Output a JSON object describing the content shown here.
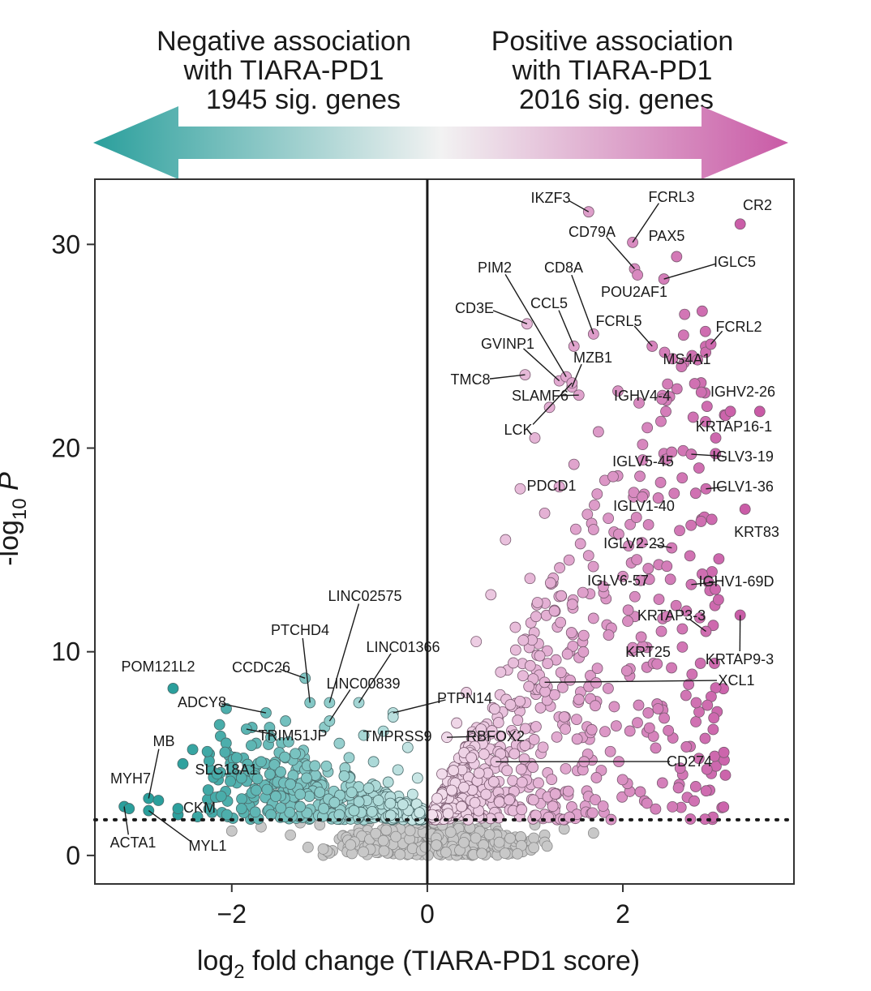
{
  "header": {
    "negative": {
      "line1": "Negative association",
      "line2": "with TIARA-PD1",
      "line3": "1945 sig. genes"
    },
    "positive": {
      "line1": "Positive association",
      "line2": "with TIARA-PD1",
      "line3": "2016 sig. genes"
    },
    "colors": {
      "negative": "#2a9f9c",
      "neutral": "#f2f2f2",
      "positive": "#c95aa6"
    }
  },
  "chart_data": {
    "type": "scatter",
    "title": "",
    "xlabel": "log2 fold change (TIARA-PD1 score)",
    "xlabel_parts": {
      "pre": "log",
      "sub": "2",
      "post": " fold change (TIARA-PD1 score)"
    },
    "ylabel": "-log10 P",
    "ylabel_parts": {
      "pre": "-log",
      "sub": "10",
      "post": " P"
    },
    "xlim": [
      -3.4,
      3.75
    ],
    "ylim": [
      -1.4,
      33.2
    ],
    "xticks": [
      {
        "value": -2,
        "label": "−2"
      },
      {
        "value": 0,
        "label": "0"
      },
      {
        "value": 2,
        "label": "2"
      }
    ],
    "yticks": [
      {
        "value": 0,
        "label": "0"
      },
      {
        "value": 10,
        "label": "10"
      },
      {
        "value": 20,
        "label": "20"
      },
      {
        "value": 30,
        "label": "30"
      }
    ],
    "significance_threshold": 1.75,
    "grid": false,
    "colors": {
      "negative_strong": "#2a9f9c",
      "negative_light": "#cfe9e8",
      "positive_light": "#f3e2ee",
      "positive_strong": "#c95aa6",
      "nonsig": "#c8c8c8"
    },
    "labeled_genes": [
      {
        "gene": "IKZF3",
        "x": 1.65,
        "y": 31.6
      },
      {
        "gene": "FCRL3",
        "x": 2.1,
        "y": 30.1
      },
      {
        "gene": "CR2",
        "x": 3.2,
        "y": 31.0
      },
      {
        "gene": "CD79A",
        "x": 2.12,
        "y": 28.8
      },
      {
        "gene": "PAX5",
        "x": 2.55,
        "y": 29.4
      },
      {
        "gene": "IGLC5",
        "x": 2.42,
        "y": 28.3
      },
      {
        "gene": "POU2AF1",
        "x": 2.15,
        "y": 28.5
      },
      {
        "gene": "CD8A",
        "x": 1.7,
        "y": 25.6
      },
      {
        "gene": "PIM2",
        "x": 1.42,
        "y": 23.5
      },
      {
        "gene": "CD3E",
        "x": 1.02,
        "y": 26.1
      },
      {
        "gene": "CCL5",
        "x": 1.5,
        "y": 25.0
      },
      {
        "gene": "FCRL5",
        "x": 2.3,
        "y": 25.0
      },
      {
        "gene": "FCRL2",
        "x": 2.9,
        "y": 25.1
      },
      {
        "gene": "GVINP1",
        "x": 1.35,
        "y": 23.3
      },
      {
        "gene": "MZB1",
        "x": 1.48,
        "y": 23.0
      },
      {
        "gene": "MS4A1",
        "x": 2.6,
        "y": 24.0
      },
      {
        "gene": "TMC8",
        "x": 1.0,
        "y": 23.6
      },
      {
        "gene": "SLAMF6",
        "x": 1.55,
        "y": 22.6
      },
      {
        "gene": "IGHV4-4",
        "x": 2.4,
        "y": 22.4
      },
      {
        "gene": "IGHV2-26",
        "x": 3.05,
        "y": 21.6
      },
      {
        "gene": "LCK",
        "x": 1.48,
        "y": 23.2
      },
      {
        "gene": "KRTAP16-1",
        "x": 3.1,
        "y": 21.8
      },
      {
        "gene": "IGLV5-45",
        "x": 2.5,
        "y": 19.8
      },
      {
        "gene": "IGLV3-19",
        "x": 2.7,
        "y": 19.7
      },
      {
        "gene": "PDCD1",
        "x": 1.35,
        "y": 18.1
      },
      {
        "gene": "IGLV1-36",
        "x": 2.85,
        "y": 18.0
      },
      {
        "gene": "IGLV1-40",
        "x": 2.2,
        "y": 17.6
      },
      {
        "gene": "KRT83",
        "x": 3.25,
        "y": 17.0
      },
      {
        "gene": "IGLV2-23",
        "x": 2.5,
        "y": 15.1
      },
      {
        "gene": "IGLV6-57",
        "x": 2.0,
        "y": 13.7
      },
      {
        "gene": "IGHV1-69D",
        "x": 2.7,
        "y": 13.3
      },
      {
        "gene": "KRTAP3-3",
        "x": 2.85,
        "y": 11.0
      },
      {
        "gene": "KRT25",
        "x": 2.1,
        "y": 10.2
      },
      {
        "gene": "KRTAP9-3",
        "x": 3.2,
        "y": 11.8
      },
      {
        "gene": "XCL1",
        "x": 1.2,
        "y": 8.5
      },
      {
        "gene": "CD274",
        "x": 0.7,
        "y": 4.6
      },
      {
        "gene": "PTPN14",
        "x": -0.35,
        "y": 7.0
      },
      {
        "gene": "RBFOX2",
        "x": 0.2,
        "y": 5.8
      },
      {
        "gene": "TMPRSS9",
        "x": -0.35,
        "y": 6.8
      },
      {
        "gene": "LINC02575",
        "x": -1.0,
        "y": 7.5
      },
      {
        "gene": "LINC01366",
        "x": -0.7,
        "y": 7.5
      },
      {
        "gene": "LINC00839",
        "x": -1.0,
        "y": 6.6
      },
      {
        "gene": "PTCHD4",
        "x": -1.2,
        "y": 7.5
      },
      {
        "gene": "CCDC26",
        "x": -1.25,
        "y": 8.7
      },
      {
        "gene": "POM121L2",
        "x": -2.6,
        "y": 8.2
      },
      {
        "gene": "ADCY8",
        "x": -1.65,
        "y": 7.0
      },
      {
        "gene": "TRIM51JP",
        "x": -1.85,
        "y": 6.2
      },
      {
        "gene": "SLC18A1",
        "x": -1.95,
        "y": 4.8
      },
      {
        "gene": "MB",
        "x": -2.85,
        "y": 2.8
      },
      {
        "gene": "MYH7",
        "x": -3.05,
        "y": 2.3
      },
      {
        "gene": "CKM",
        "x": -2.55,
        "y": 2.0
      },
      {
        "gene": "ACTA1",
        "x": -3.1,
        "y": 2.4
      },
      {
        "gene": "MYL1",
        "x": -2.85,
        "y": 2.2
      }
    ],
    "sample_points": {
      "negative_significant": [
        [
          -3.1,
          2.4
        ],
        [
          -3.05,
          2.3
        ],
        [
          -2.85,
          2.8
        ],
        [
          -2.85,
          2.2
        ],
        [
          -2.75,
          2.7
        ],
        [
          -2.6,
          8.2
        ],
        [
          -2.55,
          2.0
        ],
        [
          -2.55,
          2.3
        ],
        [
          -2.5,
          4.5
        ],
        [
          -2.4,
          5.2
        ],
        [
          -2.35,
          1.9
        ],
        [
          -2.25,
          5.1
        ],
        [
          -2.15,
          4.0
        ],
        [
          -2.05,
          2.0
        ],
        [
          -2.0,
          4.3
        ],
        [
          -1.95,
          4.8
        ],
        [
          -1.9,
          3.8
        ],
        [
          -1.85,
          6.2
        ],
        [
          -1.8,
          5.4
        ],
        [
          -1.75,
          3.2
        ],
        [
          -1.7,
          4.6
        ],
        [
          -1.65,
          7.0
        ],
        [
          -1.6,
          5.8
        ],
        [
          -1.55,
          2.9
        ],
        [
          -1.5,
          4.1
        ],
        [
          -1.45,
          6.6
        ],
        [
          -1.4,
          3.5
        ],
        [
          -1.35,
          5.0
        ],
        [
          -1.3,
          2.4
        ],
        [
          -1.25,
          8.7
        ],
        [
          -1.2,
          7.5
        ],
        [
          -1.15,
          4.4
        ],
        [
          -1.1,
          3.1
        ],
        [
          -1.05,
          6.3
        ],
        [
          -1.0,
          7.5
        ],
        [
          -1.0,
          6.6
        ],
        [
          -0.95,
          2.6
        ],
        [
          -0.9,
          5.5
        ],
        [
          -0.85,
          3.9
        ],
        [
          -0.8,
          4.8
        ],
        [
          -0.75,
          2.2
        ],
        [
          -0.7,
          7.5
        ],
        [
          -0.65,
          5.9
        ],
        [
          -0.6,
          3.3
        ],
        [
          -0.55,
          4.6
        ],
        [
          -0.5,
          2.7
        ],
        [
          -0.45,
          6.1
        ],
        [
          -0.4,
          3.6
        ],
        [
          -0.35,
          7.0
        ],
        [
          -0.35,
          6.8
        ],
        [
          -0.3,
          4.2
        ],
        [
          -0.25,
          2.5
        ],
        [
          -0.2,
          5.3
        ],
        [
          -0.15,
          3.0
        ],
        [
          -0.1,
          3.8
        ],
        [
          -0.08,
          2.1
        ],
        [
          -1.9,
          2.3
        ],
        [
          -1.6,
          2.0
        ],
        [
          -1.3,
          3.0
        ],
        [
          -0.9,
          2.0
        ]
      ],
      "positive_significant": [
        [
          0.05,
          2.0
        ],
        [
          0.1,
          2.8
        ],
        [
          0.15,
          4.0
        ],
        [
          0.2,
          5.8
        ],
        [
          0.25,
          3.2
        ],
        [
          0.3,
          6.5
        ],
        [
          0.35,
          2.4
        ],
        [
          0.4,
          8.0
        ],
        [
          0.45,
          4.8
        ],
        [
          0.5,
          10.5
        ],
        [
          0.55,
          6.2
        ],
        [
          0.6,
          3.0
        ],
        [
          0.65,
          12.8
        ],
        [
          0.7,
          4.6
        ],
        [
          0.75,
          9.0
        ],
        [
          0.8,
          15.5
        ],
        [
          0.85,
          7.4
        ],
        [
          0.9,
          11.2
        ],
        [
          0.95,
          18.0
        ],
        [
          1.0,
          23.6
        ],
        [
          1.0,
          5.4
        ],
        [
          1.02,
          26.1
        ],
        [
          1.05,
          13.6
        ],
        [
          1.1,
          20.5
        ],
        [
          1.15,
          9.8
        ],
        [
          1.2,
          8.5
        ],
        [
          1.2,
          16.8
        ],
        [
          1.25,
          22.0
        ],
        [
          1.3,
          12.0
        ],
        [
          1.35,
          18.1
        ],
        [
          1.35,
          23.3
        ],
        [
          1.4,
          6.8
        ],
        [
          1.42,
          23.5
        ],
        [
          1.45,
          14.5
        ],
        [
          1.48,
          23.0
        ],
        [
          1.48,
          23.2
        ],
        [
          1.5,
          25.0
        ],
        [
          1.5,
          19.2
        ],
        [
          1.55,
          22.6
        ],
        [
          1.6,
          10.8
        ],
        [
          1.65,
          31.6
        ],
        [
          1.7,
          25.6
        ],
        [
          1.7,
          16.0
        ],
        [
          1.75,
          20.8
        ],
        [
          1.8,
          13.2
        ],
        [
          1.85,
          8.2
        ],
        [
          1.9,
          18.6
        ],
        [
          1.95,
          22.8
        ],
        [
          2.0,
          13.7
        ],
        [
          2.05,
          11.5
        ],
        [
          2.1,
          30.1
        ],
        [
          2.1,
          10.2
        ],
        [
          2.12,
          28.8
        ],
        [
          2.15,
          28.5
        ],
        [
          2.2,
          17.6
        ],
        [
          2.25,
          21.0
        ],
        [
          2.3,
          25.0
        ],
        [
          2.35,
          9.4
        ],
        [
          2.4,
          22.4
        ],
        [
          2.42,
          28.3
        ],
        [
          2.45,
          14.2
        ],
        [
          2.5,
          19.8
        ],
        [
          2.5,
          15.1
        ],
        [
          2.55,
          29.4
        ],
        [
          2.6,
          24.0
        ],
        [
          2.65,
          12.0
        ],
        [
          2.7,
          19.7
        ],
        [
          2.7,
          13.3
        ],
        [
          2.75,
          7.5
        ],
        [
          2.8,
          16.4
        ],
        [
          2.85,
          18.0
        ],
        [
          2.85,
          11.0
        ],
        [
          2.9,
          25.1
        ],
        [
          2.95,
          20.5
        ],
        [
          3.05,
          21.6
        ],
        [
          3.1,
          21.8
        ],
        [
          3.2,
          31.0
        ],
        [
          3.2,
          11.8
        ],
        [
          3.25,
          17.0
        ],
        [
          3.4,
          21.8
        ]
      ],
      "nonsignificant": [
        [
          -2.0,
          1.2
        ],
        [
          -1.7,
          1.4
        ],
        [
          -1.4,
          1.0
        ],
        [
          -1.1,
          1.5
        ],
        [
          -0.9,
          0.8
        ],
        [
          -0.7,
          1.3
        ],
        [
          -0.55,
          0.5
        ],
        [
          -0.4,
          1.1
        ],
        [
          -0.3,
          0.3
        ],
        [
          -0.2,
          0.9
        ],
        [
          -0.12,
          0.2
        ],
        [
          -0.05,
          0.6
        ],
        [
          0.0,
          0.1
        ],
        [
          0.05,
          0.7
        ],
        [
          0.12,
          0.3
        ],
        [
          0.2,
          1.0
        ],
        [
          0.3,
          0.4
        ],
        [
          0.4,
          1.2
        ],
        [
          0.55,
          0.6
        ],
        [
          0.7,
          1.4
        ],
        [
          0.9,
          0.9
        ],
        [
          1.1,
          1.5
        ],
        [
          1.4,
          1.3
        ],
        [
          1.7,
          1.1
        ],
        [
          -0.6,
          1.6
        ],
        [
          0.6,
          1.6
        ],
        [
          -0.25,
          1.5
        ],
        [
          0.25,
          1.5
        ],
        [
          -1.3,
          1.6
        ],
        [
          1.2,
          1.0
        ]
      ]
    }
  }
}
